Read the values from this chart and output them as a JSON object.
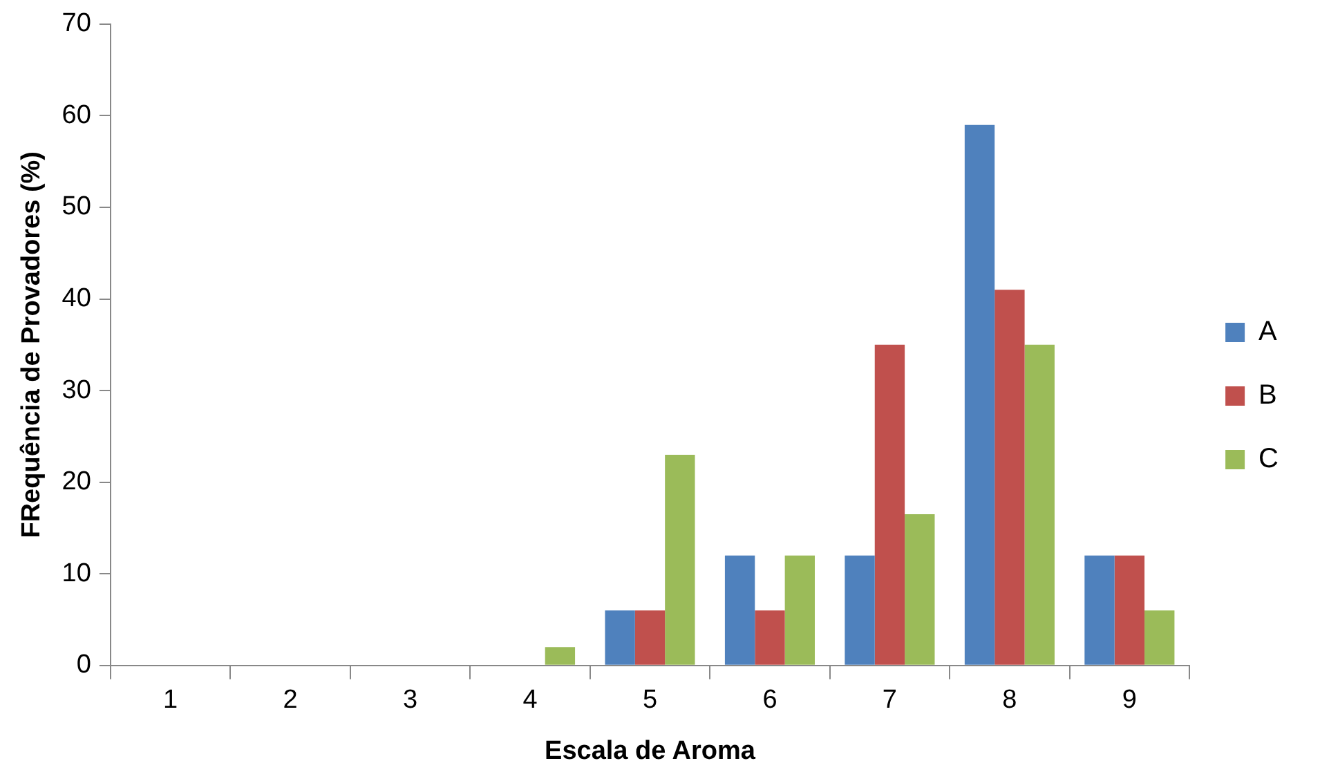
{
  "chart_data": {
    "type": "bar",
    "xlabel": "Escala de Aroma",
    "ylabel": "FRequência de Provadores (%)",
    "categories": [
      "1",
      "2",
      "3",
      "4",
      "5",
      "6",
      "7",
      "8",
      "9"
    ],
    "series": [
      {
        "name": "A",
        "color": "#4f81bd",
        "values": [
          0,
          0,
          0,
          0,
          6,
          12,
          12,
          59,
          12
        ]
      },
      {
        "name": "B",
        "color": "#c0504d",
        "values": [
          0,
          0,
          0,
          0,
          6,
          6,
          35,
          41,
          12
        ]
      },
      {
        "name": "C",
        "color": "#9bbb59",
        "values": [
          0,
          0,
          0,
          2,
          23,
          12,
          16.5,
          35,
          6
        ]
      }
    ],
    "ylim": [
      0,
      70
    ],
    "yticks": [
      0,
      10,
      20,
      30,
      40,
      50,
      60,
      70
    ],
    "grid": false,
    "legend": "right"
  }
}
